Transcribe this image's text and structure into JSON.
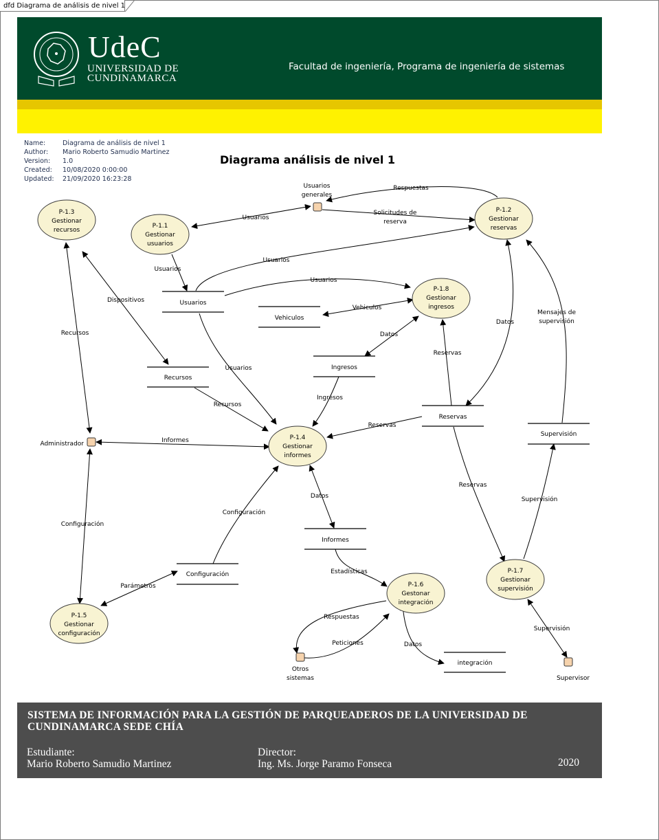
{
  "window": {
    "tab_title": "dfd Diagrama de análisis de nivel 1"
  },
  "banner": {
    "logo_text": "UdeC",
    "university_line1": "UNIVERSIDAD DE",
    "university_line2": "CUNDINAMARCA",
    "faculty": "Facultad de ingeniería, Programa de ingeniería de sistemas",
    "colors": {
      "green": "#004a2c",
      "gold": "#e6c600",
      "yellow": "#fff200"
    }
  },
  "meta": {
    "name_key": "Name:",
    "name": "Diagrama de análisis de nivel 1",
    "author_key": "Author:",
    "author": "Mario Roberto Samudio Martinez",
    "version_key": "Version:",
    "version": "1.0",
    "created_key": "Created:",
    "created": "10/08/2020 0:00:00",
    "updated_key": "Updated:",
    "updated": "21/09/2020 16:23:28"
  },
  "diagram": {
    "title": "Diagrama análisis de nivel 1",
    "processes": {
      "p13": {
        "id": "P-1.3",
        "line1": "Gestionar",
        "line2": "recursos"
      },
      "p11": {
        "id": "P-1.1",
        "line1": "Gestionar",
        "line2": "usuarios"
      },
      "p12": {
        "id": "P-1.2",
        "line1": "Gestionar",
        "line2": "reservas"
      },
      "p18": {
        "id": "P-1.8",
        "line1": "Gestionar",
        "line2": "ingresos"
      },
      "p14": {
        "id": "P-1.4",
        "line1": "Gestionar",
        "line2": "informes"
      },
      "p17": {
        "id": "P-1.7",
        "line1": "Gestionar",
        "line2": "supervisión"
      },
      "p15": {
        "id": "P-1.5",
        "line1": "Gestionar",
        "line2": "configuración"
      },
      "p16": {
        "id": "P-1.6",
        "line1": "Gestonar",
        "line2": "integración"
      }
    },
    "stores": {
      "usuarios": "Usuarios",
      "vehiculos": "Vehiculos",
      "recursos": "Recursos",
      "ingresos": "Ingresos",
      "reservas": "Reservas",
      "supervision": "Supervisión",
      "informes": "Informes",
      "configuracion": "Configuración",
      "integracion": "integración"
    },
    "entities": {
      "usuarios_generales_1": "Usuarios",
      "usuarios_generales_2": "generales",
      "administrador": "Administrador",
      "otros_sistemas_1": "Otros",
      "otros_sistemas_2": "sistemas",
      "supervisor": "Supervisor"
    },
    "flows": {
      "respuestas_top": "Respuestas",
      "usuarios_ug_p11": "Usuarios",
      "solicitudes_1": "Solicitudes de",
      "solicitudes_2": "reserva",
      "usuarios_p11_store": "Usuarios",
      "usuarios_store_p12": "Usuarios",
      "usuarios_store_p18": "Usuarios",
      "dispositivos": "Dispositivos",
      "recursos_p13_admin": "Recursos",
      "vehiculos": "Vehiculos",
      "datos_p18_ingresos": "Datos",
      "reservas_p18": "Reservas",
      "datos_p12_reservas": "Datos",
      "mensajes_1": "Mensajes de",
      "mensajes_2": "supervisión",
      "usuarios_store_p14": "Usuarios",
      "recursos_store_p14": "Recursos",
      "ingresos_store_p14": "Ingresos",
      "reservas_store_p14": "Reservas",
      "informes_admin": "Informes",
      "datos_p14_informes": "Datos",
      "configuracion_store_p14": "Configuración",
      "configuracion_admin_p15": "Configuración",
      "parametros": "Parámetros",
      "reservas_store_p17": "Reservas",
      "supervision_p17_store": "Supervisión",
      "estadisticas": "Estadísticas",
      "respuestas_p16": "Respuestas",
      "peticiones": "Peticiones",
      "datos_p16": "Datos",
      "supervision_supervisor": "Supervisión"
    }
  },
  "footer": {
    "title": "SISTEMA DE INFORMACIÓN PARA LA GESTIÓN DE PARQUEADEROS DE LA UNIVERSIDAD DE CUNDINAMARCA SEDE CHÍA",
    "student_label": "Estudiante:",
    "student_name": "Mario Roberto Samudio Martinez",
    "director_label": "Director:",
    "director_name": "Ing. Ms. Jorge Paramo Fonseca",
    "year": "2020",
    "color": "#4d4d4d"
  }
}
